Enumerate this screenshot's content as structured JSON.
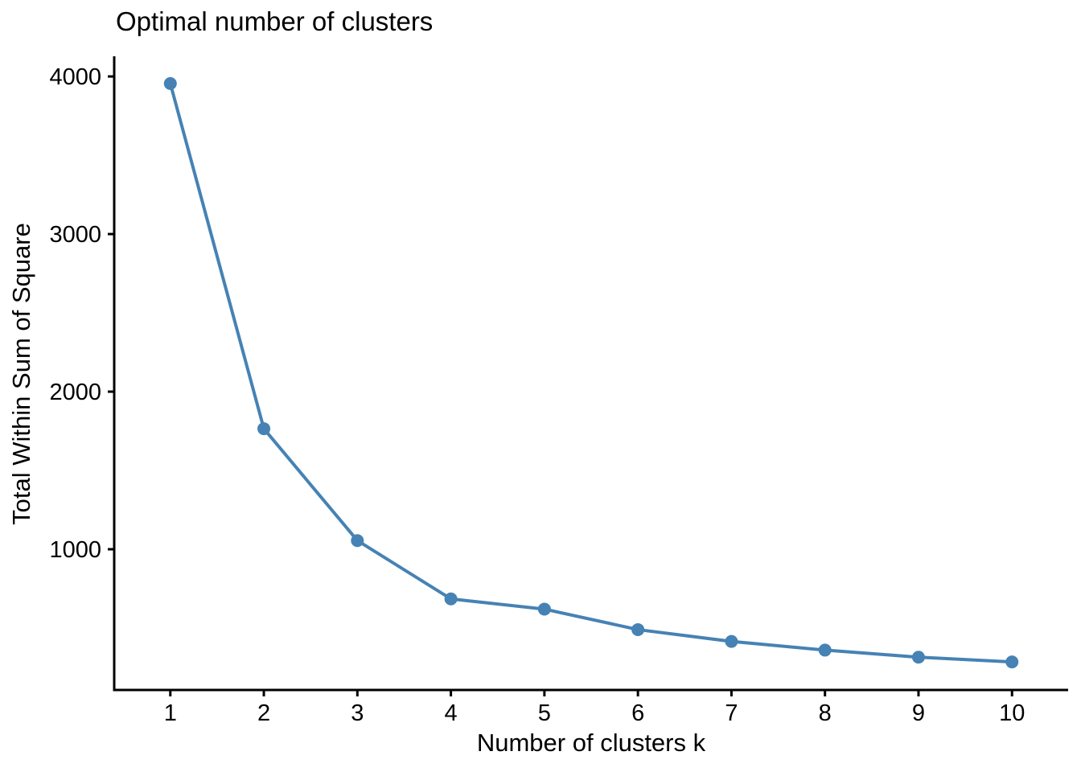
{
  "chart_data": {
    "type": "line",
    "title": "Optimal number of clusters",
    "xlabel": "Number of clusters k",
    "ylabel": "Total Within Sum of Square",
    "series": [
      {
        "name": "total-within-sum-of-square",
        "x": [
          1,
          2,
          3,
          4,
          5,
          6,
          7,
          8,
          9,
          10
        ],
        "y": [
          3955,
          1765,
          1055,
          685,
          620,
          490,
          415,
          360,
          315,
          285
        ]
      }
    ],
    "x_ticks": [
      1,
      2,
      3,
      4,
      5,
      6,
      7,
      8,
      9,
      10
    ],
    "y_ticks": [
      1000,
      2000,
      3000,
      4000
    ],
    "xlim": [
      0.4,
      10.6
    ],
    "ylim": [
      107,
      4128
    ],
    "grid": false,
    "legend_position": "none",
    "line_color": "#4682B4",
    "point_color": "#4682B4",
    "axis_color": "#000000",
    "background_color": "#ffffff"
  }
}
